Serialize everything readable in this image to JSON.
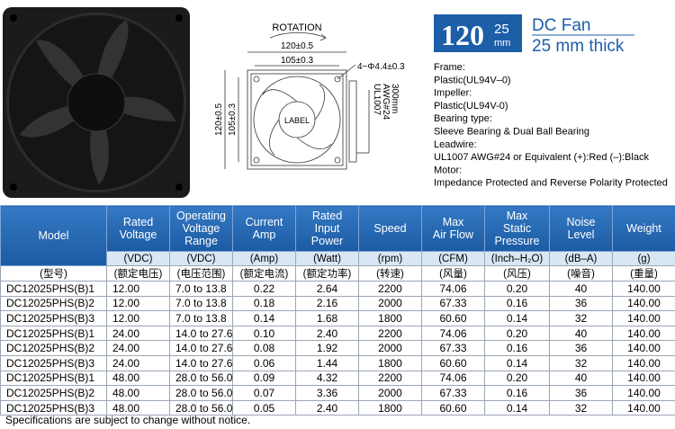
{
  "brand_box": {
    "size": "120",
    "sub_top": "25",
    "sub_bottom": "mm"
  },
  "product": {
    "line1": "DC Fan",
    "line2": "25 mm thick"
  },
  "drawing": {
    "rotation": "ROTATION",
    "width_outer": "120±0.5",
    "width_inner": "105±0.3",
    "holes": "4−Φ4.4±0.3",
    "label": "LABEL",
    "height_outer": "120±0.5",
    "height_inner": "105±0.3",
    "lead_lines": [
      "UL1007",
      "AWG#24",
      "300mm"
    ]
  },
  "specs": [
    "Frame:",
    "Plastic(UL94V–0)",
    "Impeller:",
    "Plastic(UL94V-0)",
    "Bearing type:",
    "Sleeve Bearing & Dual Ball Bearing",
    "Leadwire:",
    "UL1007 AWG#24 or Equivalent (+):Red (–):Black",
    "Motor:",
    "Impedance Protected and Reverse Polarity Protected"
  ],
  "table": {
    "headers": [
      [
        "Model"
      ],
      [
        "Rated",
        "Voltage"
      ],
      [
        "Operating",
        "Voltage",
        "Range"
      ],
      [
        "Current",
        "Amp"
      ],
      [
        "Rated",
        "Input",
        "Power"
      ],
      [
        "Speed"
      ],
      [
        "Max",
        "Air Flow"
      ],
      [
        "Max",
        "Static",
        "Pressure"
      ],
      [
        "Noise",
        "Level"
      ],
      [
        "Weight"
      ]
    ],
    "units": [
      "(VDC)",
      "(VDC)",
      "(Amp)",
      "(Watt)",
      "(rpm)",
      "(CFM)",
      "(Inch–H₂O)",
      "(dB–A)",
      "(g)"
    ],
    "units_cn": [
      "(型号)",
      "(额定电压)",
      "(电压范围)",
      "(额定电流)",
      "(额定功率)",
      "(转速)",
      "(风量)",
      "(风压)",
      "(噪音)",
      "(重量)"
    ],
    "rows": [
      [
        "DC12025PHS(B)1",
        "12.00",
        "7.0 to 13.8",
        "0.22",
        "2.64",
        "2200",
        "74.06",
        "0.20",
        "40",
        "140.00"
      ],
      [
        "DC12025PHS(B)2",
        "12.00",
        "7.0 to 13.8",
        "0.18",
        "2.16",
        "2000",
        "67.33",
        "0.16",
        "36",
        "140.00"
      ],
      [
        "DC12025PHS(B)3",
        "12.00",
        "7.0 to 13.8",
        "0.14",
        "1.68",
        "1800",
        "60.60",
        "0.14",
        "32",
        "140.00"
      ],
      [
        "DC12025PHS(B)1",
        "24.00",
        "14.0 to 27.6",
        "0.10",
        "2.40",
        "2200",
        "74.06",
        "0.20",
        "40",
        "140.00"
      ],
      [
        "DC12025PHS(B)2",
        "24.00",
        "14.0 to 27.6",
        "0.08",
        "1.92",
        "2000",
        "67.33",
        "0.16",
        "36",
        "140.00"
      ],
      [
        "DC12025PHS(B)3",
        "24.00",
        "14.0 to 27.6",
        "0.06",
        "1.44",
        "1800",
        "60.60",
        "0.14",
        "32",
        "140.00"
      ],
      [
        "DC12025PHS(B)1",
        "48.00",
        "28.0 to 56.0",
        "0.09",
        "4.32",
        "2200",
        "74.06",
        "0.20",
        "40",
        "140.00"
      ],
      [
        "DC12025PHS(B)2",
        "48.00",
        "28.0 to 56.0",
        "0.07",
        "3.36",
        "2000",
        "67.33",
        "0.16",
        "36",
        "140.00"
      ],
      [
        "DC12025PHS(B)3",
        "48.00",
        "28.0 to 56.0",
        "0.05",
        "2.40",
        "1800",
        "60.60",
        "0.14",
        "32",
        "140.00"
      ]
    ]
  },
  "footer": "Specifications are subject to change without notice."
}
